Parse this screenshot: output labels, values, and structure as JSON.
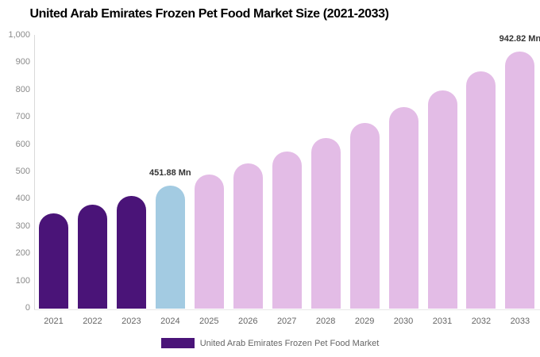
{
  "title": "United Arab Emirates Frozen Pet Food Market Size (2021-2033)",
  "chart_data": {
    "type": "bar",
    "title": "United Arab Emirates Frozen Pet Food Market Size (2021-2033)",
    "categories": [
      "2021",
      "2022",
      "2023",
      "2024",
      "2025",
      "2026",
      "2027",
      "2028",
      "2029",
      "2030",
      "2031",
      "2032",
      "2033"
    ],
    "values": [
      350,
      380,
      412,
      451.88,
      490,
      532,
      577,
      626,
      680,
      737,
      800,
      868,
      942.82
    ],
    "unit": "Mn",
    "color_keys": [
      "historical",
      "historical",
      "historical",
      "current",
      "forecast",
      "forecast",
      "forecast",
      "forecast",
      "forecast",
      "forecast",
      "forecast",
      "forecast",
      "forecast"
    ],
    "colors": {
      "historical": "#4A1478",
      "current": "#A3CBE2",
      "forecast": "#E3BCE6"
    },
    "annotations": [
      {
        "index": 3,
        "text": "451.88 Mn"
      },
      {
        "index": 12,
        "text": "942.82 Mn"
      }
    ],
    "xlabel": "",
    "ylabel": "",
    "ylim": [
      0,
      1000
    ],
    "yticks": [
      "1,000",
      "900",
      "800",
      "700",
      "600",
      "500",
      "400",
      "300",
      "200",
      "100",
      "0"
    ],
    "grid": false,
    "legend": {
      "position": "bottom",
      "label": "United Arab Emirates Frozen Pet Food Market",
      "swatch_color": "#4A1478"
    }
  }
}
